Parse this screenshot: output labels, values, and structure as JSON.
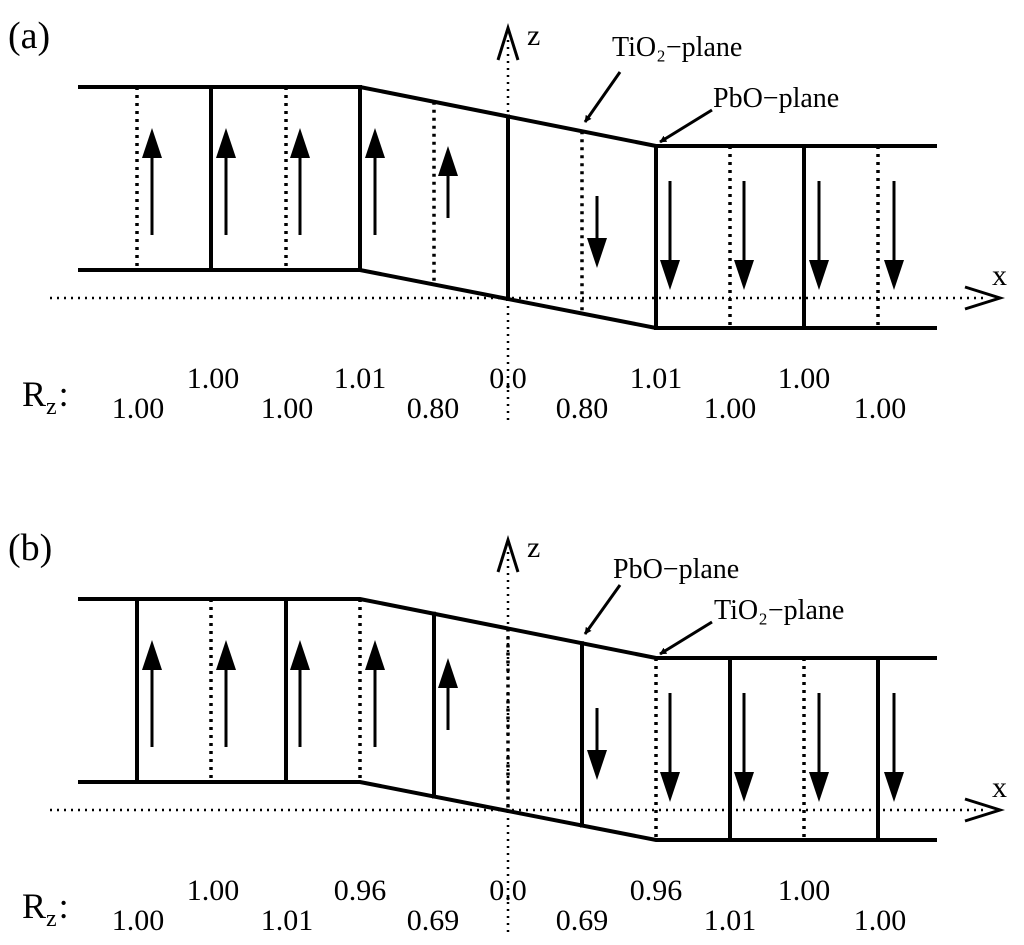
{
  "panels": [
    {
      "id": "a",
      "label": "(a)",
      "z_axis_label": "z",
      "x_axis_label": "x",
      "annotation_upper": "TiO₂−plane",
      "annotation_lower": "PbO−plane",
      "rz_label": "R",
      "rz_subscript": "z",
      "rz_colon": ":",
      "rz_values": [
        "1.00",
        "1.00",
        "1.00",
        "1.01",
        "0.80",
        "0.0",
        "0.80",
        "1.01",
        "1.00",
        "1.00",
        "1.00"
      ],
      "polarization": [
        "up",
        "up",
        "up",
        "up",
        "up-short",
        "down-short",
        "down",
        "down",
        "down",
        "down"
      ],
      "plane_styles": [
        "dotted",
        "solid",
        "dotted",
        "solid",
        "dotted",
        "solid",
        "dotted",
        "solid",
        "dotted",
        "solid",
        "dotted"
      ]
    },
    {
      "id": "b",
      "label": "(b)",
      "z_axis_label": "z",
      "x_axis_label": "x",
      "annotation_upper": "PbO−plane",
      "annotation_lower": "TiO₂−plane",
      "rz_label": "R",
      "rz_subscript": "z",
      "rz_colon": ":",
      "rz_values": [
        "1.00",
        "1.00",
        "1.01",
        "0.96",
        "0.69",
        "0.0",
        "0.69",
        "0.96",
        "1.01",
        "1.00",
        "1.00"
      ],
      "polarization": [
        "up",
        "up",
        "up",
        "up",
        "up-short",
        "down-short",
        "down",
        "down",
        "down",
        "down"
      ],
      "plane_styles": [
        "solid",
        "dotted",
        "solid",
        "dotted",
        "solid",
        "dotted",
        "solid",
        "dotted",
        "solid",
        "dotted",
        "solid"
      ]
    }
  ]
}
